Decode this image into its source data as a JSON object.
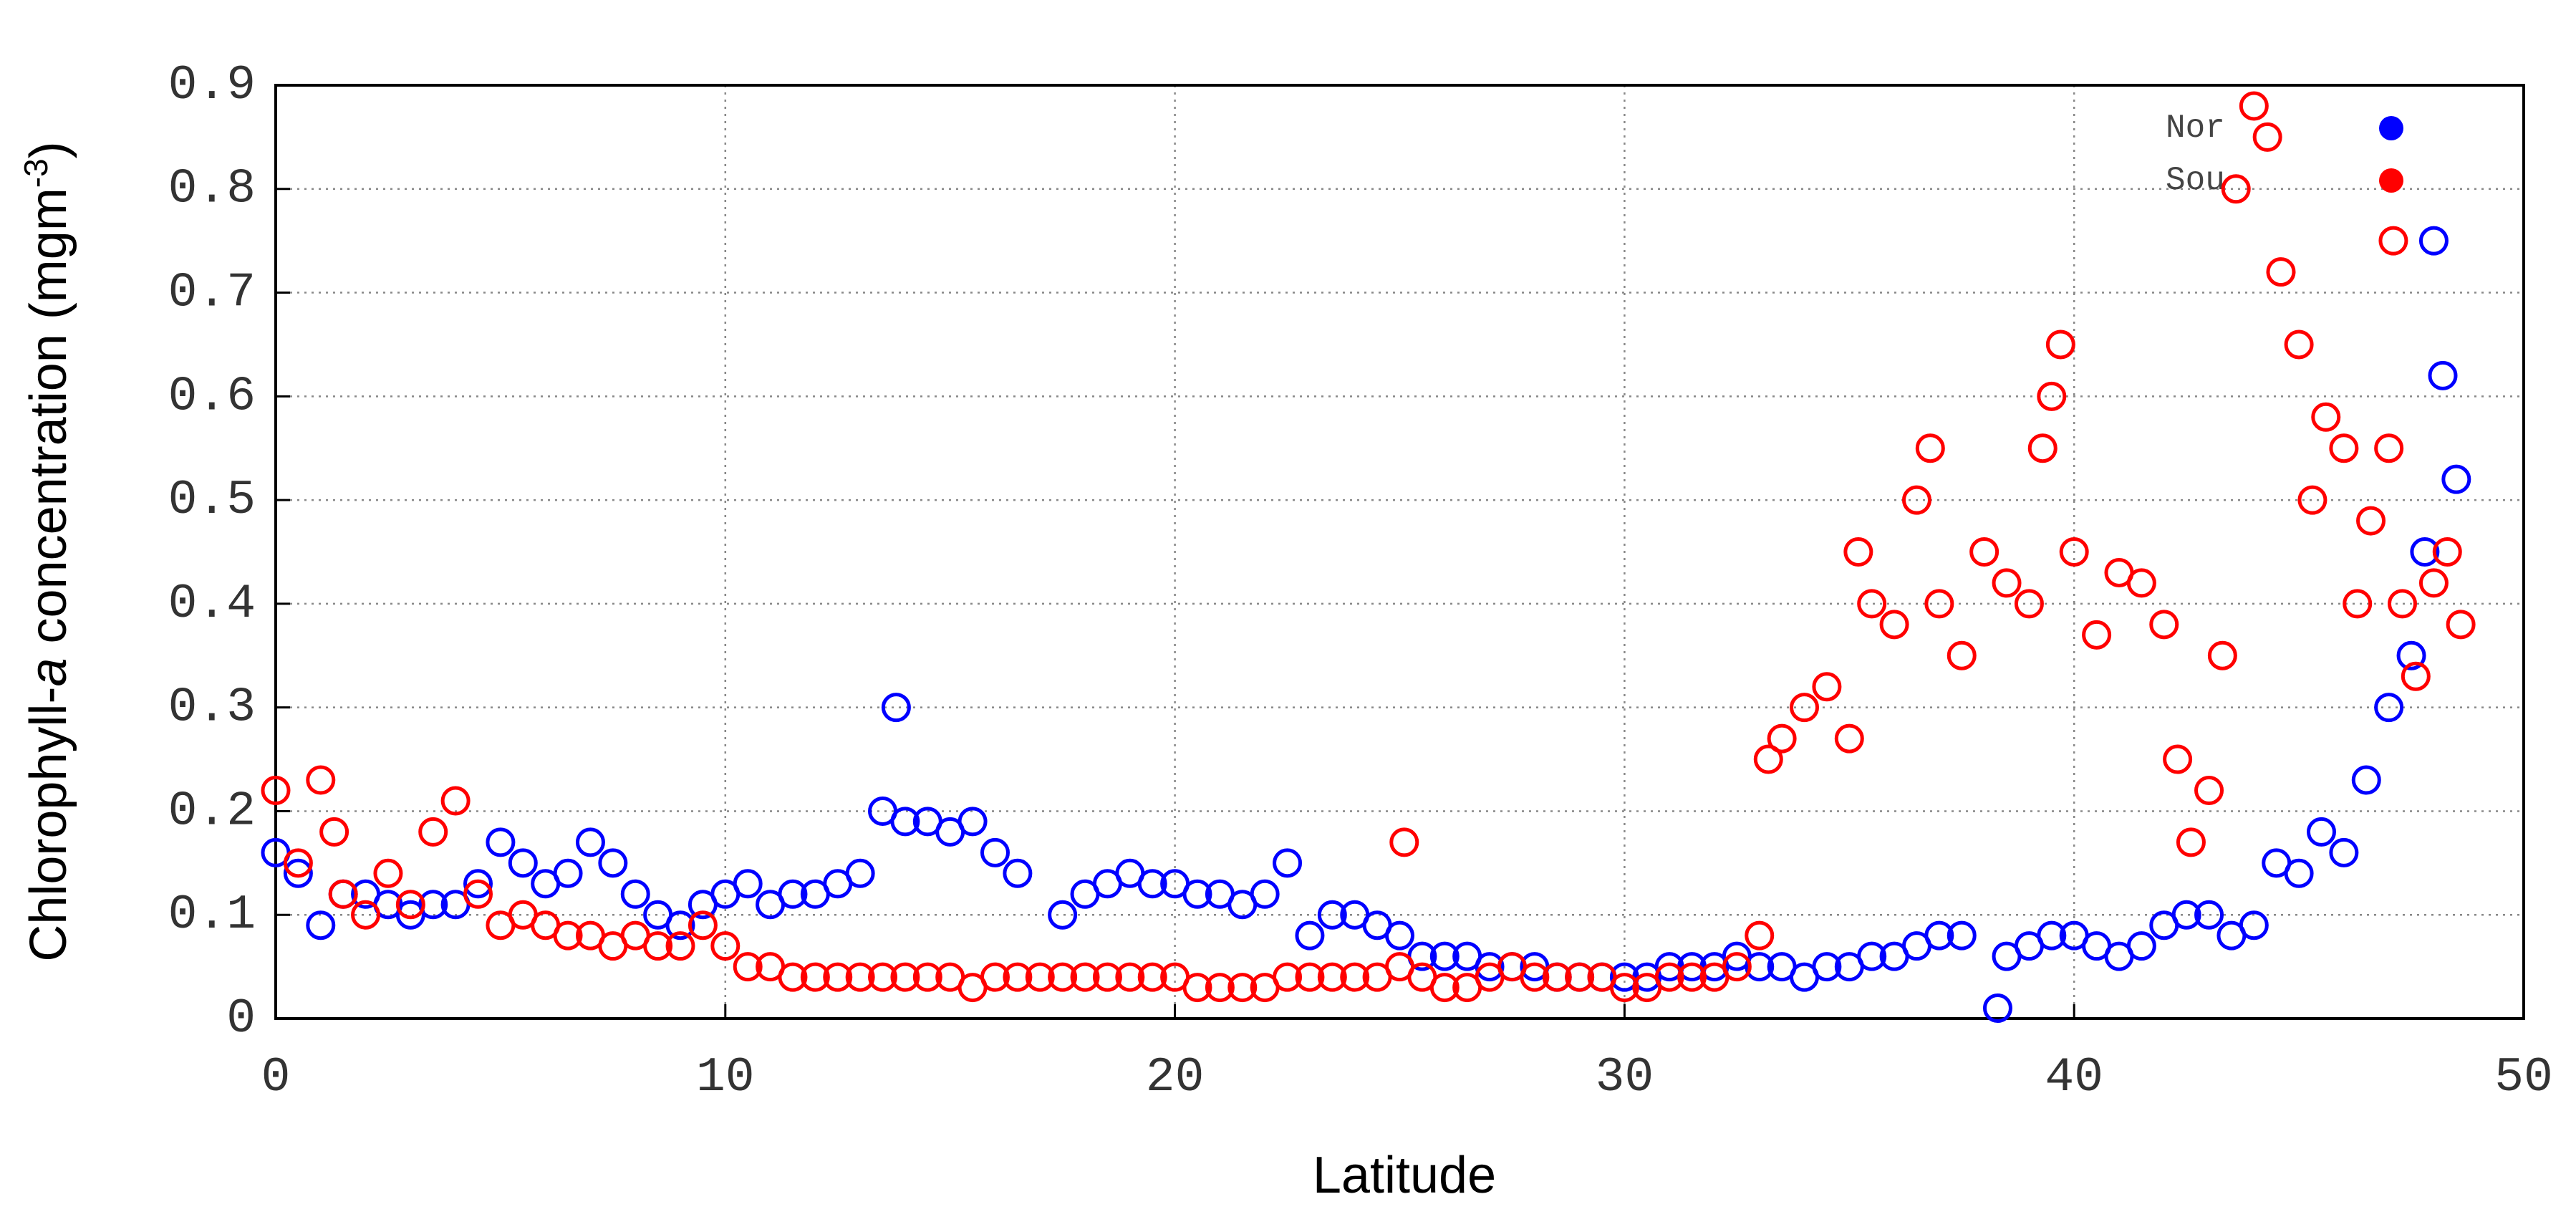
{
  "chart_data": {
    "type": "scatter",
    "xlabel": "Latitude",
    "ylabel": [
      "Chlorophyll-",
      "a",
      " concentration (mgm",
      "-3",
      ")"
    ],
    "xlim": [
      0,
      50
    ],
    "xticks": [
      0,
      10,
      20,
      30,
      40,
      50
    ],
    "ylim": [
      0,
      0.9
    ],
    "yticks": [
      0,
      0.1,
      0.2,
      0.3,
      0.4,
      0.5,
      0.6,
      0.7,
      0.8,
      0.9
    ],
    "grid": true,
    "legend": "upper right",
    "series": [
      {
        "name": "Nor",
        "color": "#0000ff",
        "x": [
          0,
          0.5,
          1,
          1.5,
          2,
          2.5,
          3,
          3.5,
          4,
          4.5,
          5,
          5.5,
          6,
          6.5,
          7,
          7.5,
          8,
          8.5,
          9,
          9.5,
          10,
          10.5,
          11,
          11.5,
          12,
          12.5,
          13,
          13.5,
          13.8,
          14,
          14.5,
          15,
          15.5,
          16,
          16.5,
          17.5,
          18,
          18.5,
          19,
          19.5,
          20,
          20.5,
          21,
          21.5,
          22,
          22.5,
          23,
          23.5,
          24,
          24.5,
          25,
          25.5,
          26,
          26.5,
          27,
          27.5,
          28,
          28.5,
          29,
          29.5,
          30,
          30.5,
          31,
          31.5,
          32,
          32.5,
          33,
          33.5,
          34,
          34.5,
          35,
          35.5,
          36,
          36.5,
          37,
          37.5,
          38.3,
          38.5,
          39,
          39.5,
          40,
          40.5,
          41,
          41.5,
          42,
          42.5,
          43,
          43.5,
          44,
          44.5,
          45,
          45.5,
          46,
          46.5,
          47,
          47.5,
          47.8,
          48,
          48.2,
          48.5
        ],
        "values": [
          0.16,
          0.14,
          0.09,
          0.12,
          0.12,
          0.11,
          0.1,
          0.11,
          0.11,
          0.13,
          0.17,
          0.15,
          0.13,
          0.14,
          0.17,
          0.15,
          0.12,
          0.1,
          0.09,
          0.11,
          0.12,
          0.13,
          0.11,
          0.12,
          0.12,
          0.13,
          0.14,
          0.2,
          0.3,
          0.19,
          0.19,
          0.18,
          0.19,
          0.16,
          0.14,
          0.1,
          0.12,
          0.13,
          0.14,
          0.13,
          0.13,
          0.12,
          0.12,
          0.11,
          0.12,
          0.15,
          0.08,
          0.1,
          0.1,
          0.09,
          0.08,
          0.06,
          0.06,
          0.06,
          0.05,
          0.05,
          0.05,
          0.04,
          0.04,
          0.04,
          0.04,
          0.04,
          0.05,
          0.05,
          0.05,
          0.06,
          0.05,
          0.05,
          0.04,
          0.05,
          0.05,
          0.06,
          0.06,
          0.07,
          0.08,
          0.08,
          0.01,
          0.06,
          0.07,
          0.08,
          0.08,
          0.07,
          0.06,
          0.07,
          0.09,
          0.1,
          0.1,
          0.08,
          0.09,
          0.15,
          0.14,
          0.18,
          0.16,
          0.23,
          0.3,
          0.35,
          0.45,
          0.75,
          0.62,
          0.52
        ]
      },
      {
        "name": "Sou",
        "color": "#ff0000",
        "x": [
          0,
          0.5,
          1,
          1.3,
          1.5,
          2,
          2.5,
          3,
          3.5,
          4,
          4.5,
          5,
          5.5,
          6,
          6.5,
          7,
          7.5,
          8,
          8.5,
          9,
          9.5,
          10,
          10.5,
          11,
          11.5,
          12,
          12.5,
          13,
          13.5,
          14,
          14.5,
          15,
          15.5,
          16,
          16.5,
          17,
          17.5,
          18,
          18.5,
          19,
          19.5,
          20,
          20.5,
          21,
          21.5,
          22,
          22.5,
          23,
          23.5,
          24,
          24.5,
          25,
          25.1,
          25.5,
          26,
          26.5,
          27,
          27.5,
          28,
          28.5,
          29,
          29.5,
          30,
          30.5,
          31,
          31.5,
          32,
          32.5,
          33,
          33.2,
          33.5,
          34,
          34.5,
          35,
          35.2,
          35.5,
          36,
          36.5,
          36.8,
          37,
          37.5,
          38,
          38.5,
          39,
          39.3,
          39.5,
          39.7,
          40,
          40.5,
          41,
          41.5,
          42,
          42.3,
          42.6,
          43,
          43.3,
          43.6,
          44,
          44.3,
          44.6,
          45,
          45.3,
          45.6,
          46,
          46.3,
          46.6,
          47,
          47.1,
          47.3,
          47.6,
          48,
          48.3,
          48.6
        ],
        "values": [
          0.22,
          0.15,
          0.23,
          0.18,
          0.12,
          0.1,
          0.14,
          0.11,
          0.18,
          0.21,
          0.12,
          0.09,
          0.1,
          0.09,
          0.08,
          0.08,
          0.07,
          0.08,
          0.07,
          0.07,
          0.09,
          0.07,
          0.05,
          0.05,
          0.04,
          0.04,
          0.04,
          0.04,
          0.04,
          0.04,
          0.04,
          0.04,
          0.03,
          0.04,
          0.04,
          0.04,
          0.04,
          0.04,
          0.04,
          0.04,
          0.04,
          0.04,
          0.03,
          0.03,
          0.03,
          0.03,
          0.04,
          0.04,
          0.04,
          0.04,
          0.04,
          0.05,
          0.17,
          0.04,
          0.03,
          0.03,
          0.04,
          0.05,
          0.04,
          0.04,
          0.04,
          0.04,
          0.03,
          0.03,
          0.04,
          0.04,
          0.04,
          0.05,
          0.08,
          0.25,
          0.27,
          0.3,
          0.32,
          0.27,
          0.45,
          0.4,
          0.38,
          0.5,
          0.55,
          0.4,
          0.35,
          0.45,
          0.42,
          0.4,
          0.55,
          0.6,
          0.65,
          0.45,
          0.37,
          0.43,
          0.42,
          0.38,
          0.25,
          0.17,
          0.22,
          0.35,
          0.8,
          0.88,
          0.85,
          0.72,
          0.65,
          0.5,
          0.58,
          0.55,
          0.4,
          0.48,
          0.55,
          0.75,
          0.4,
          0.33,
          0.42,
          0.45,
          0.38
        ]
      }
    ]
  }
}
